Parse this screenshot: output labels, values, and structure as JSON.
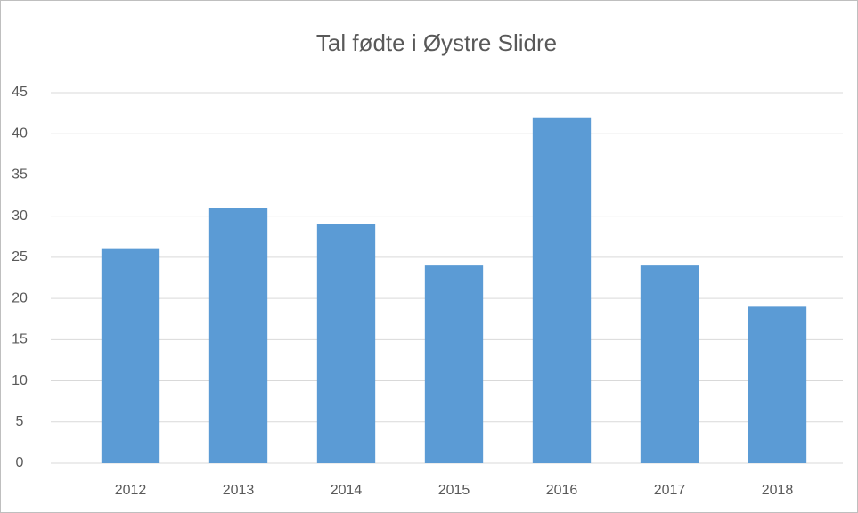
{
  "chart_data": {
    "type": "bar",
    "title": "Tal fødte i Øystre Slidre",
    "categories": [
      "2012",
      "2013",
      "2014",
      "2015",
      "2016",
      "2017",
      "2018"
    ],
    "values": [
      26,
      31,
      29,
      24,
      42,
      24,
      19
    ],
    "color": "#5b9bd5",
    "ylim": [
      0,
      45
    ],
    "yticks": [
      0,
      5,
      10,
      15,
      20,
      25,
      30,
      35,
      40,
      45
    ],
    "grid": true
  }
}
